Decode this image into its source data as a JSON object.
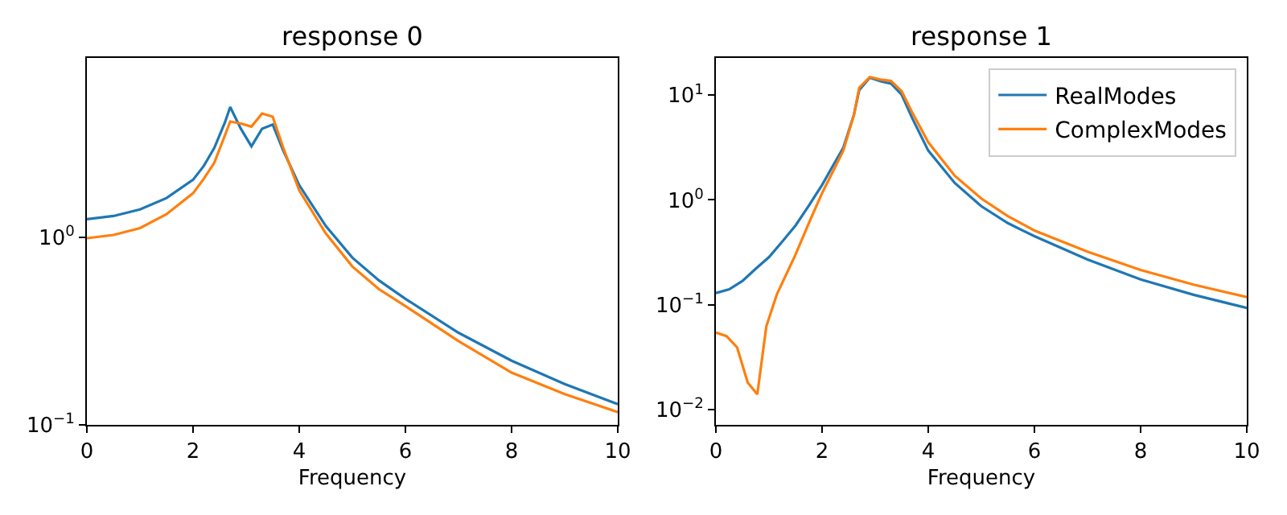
{
  "chart_data": [
    {
      "type": "line",
      "title": "response 0",
      "xlabel": "Frequency",
      "xlim": [
        0,
        10
      ],
      "xticks": [
        0,
        2,
        4,
        6,
        8,
        10
      ],
      "ylim": [
        0.1,
        9.06
      ],
      "yticks": [
        {
          "value": 0.1,
          "label": "10$^{−1}$"
        },
        {
          "value": 1,
          "label": "10$^{0}$"
        }
      ],
      "log": "y",
      "legend": false,
      "series": [
        {
          "color": "#1f77b4",
          "x": [
            0,
            0.5,
            1,
            1.5,
            2,
            2.2,
            2.4,
            2.6,
            2.7,
            2.9,
            3.1,
            3.3,
            3.5,
            3.7,
            4,
            4.5,
            5,
            5.5,
            6,
            7,
            8,
            9,
            10
          ],
          "values": [
            1.25,
            1.3,
            1.41,
            1.62,
            2.03,
            2.4,
            3.0,
            4.1,
            4.96,
            3.8,
            3.06,
            3.8,
            4.0,
            2.9,
            1.9,
            1.15,
            0.78,
            0.59,
            0.47,
            0.31,
            0.22,
            0.165,
            0.129
          ]
        },
        {
          "color": "#ff7f0e",
          "x": [
            0,
            0.5,
            1,
            1.5,
            2,
            2.2,
            2.4,
            2.6,
            2.7,
            2.9,
            3.1,
            3.3,
            3.5,
            3.7,
            4,
            4.5,
            5,
            5.5,
            6,
            7,
            8,
            9,
            10
          ],
          "values": [
            0.99,
            1.03,
            1.12,
            1.33,
            1.72,
            2.05,
            2.5,
            3.5,
            4.15,
            4.05,
            3.9,
            4.58,
            4.4,
            3.0,
            1.78,
            1.05,
            0.7,
            0.53,
            0.43,
            0.28,
            0.19,
            0.146,
            0.117
          ]
        }
      ]
    },
    {
      "type": "line",
      "title": "response 1",
      "xlabel": "Frequency",
      "xlim": [
        0,
        10
      ],
      "xticks": [
        0,
        2,
        4,
        6,
        8,
        10
      ],
      "ylim": [
        0.0071,
        22.7
      ],
      "yticks": [
        {
          "value": 0.01,
          "label": "10$^{−2}$"
        },
        {
          "value": 0.1,
          "label": "10$^{−1}$"
        },
        {
          "value": 1,
          "label": "10$^{0}$"
        },
        {
          "value": 10,
          "label": "10$^{1}$"
        }
      ],
      "log": "y",
      "legend": "top right",
      "series": [
        {
          "name": "RealModes",
          "color": "#1f77b4",
          "x": [
            0,
            0.25,
            0.5,
            0.75,
            1,
            1.25,
            1.5,
            1.75,
            2,
            2.2,
            2.4,
            2.6,
            2.7,
            2.9,
            3.1,
            3.3,
            3.5,
            3.7,
            4,
            4.5,
            5,
            5.5,
            6,
            7,
            8,
            9,
            10
          ],
          "values": [
            0.129,
            0.14,
            0.168,
            0.22,
            0.284,
            0.4,
            0.57,
            0.88,
            1.39,
            2.1,
            3.16,
            6.5,
            11.2,
            14.7,
            13.6,
            12.9,
            10.1,
            6.0,
            2.96,
            1.45,
            0.87,
            0.6,
            0.45,
            0.27,
            0.174,
            0.124,
            0.093
          ]
        },
        {
          "name": "ComplexModes",
          "color": "#ff7f0e",
          "x": [
            0,
            0.2,
            0.4,
            0.6,
            0.78,
            0.95,
            1.15,
            1.5,
            1.75,
            2,
            2.2,
            2.4,
            2.6,
            2.7,
            2.9,
            3.1,
            3.3,
            3.5,
            3.7,
            4,
            4.5,
            5,
            5.5,
            6,
            7,
            8,
            9,
            10
          ],
          "values": [
            0.054,
            0.05,
            0.039,
            0.018,
            0.0139,
            0.062,
            0.126,
            0.3,
            0.6,
            1.16,
            1.85,
            2.96,
            6.5,
            11.8,
            14.9,
            14.1,
            13.7,
            10.9,
            6.8,
            3.55,
            1.7,
            1.03,
            0.7,
            0.51,
            0.32,
            0.214,
            0.155,
            0.118
          ]
        }
      ]
    }
  ]
}
